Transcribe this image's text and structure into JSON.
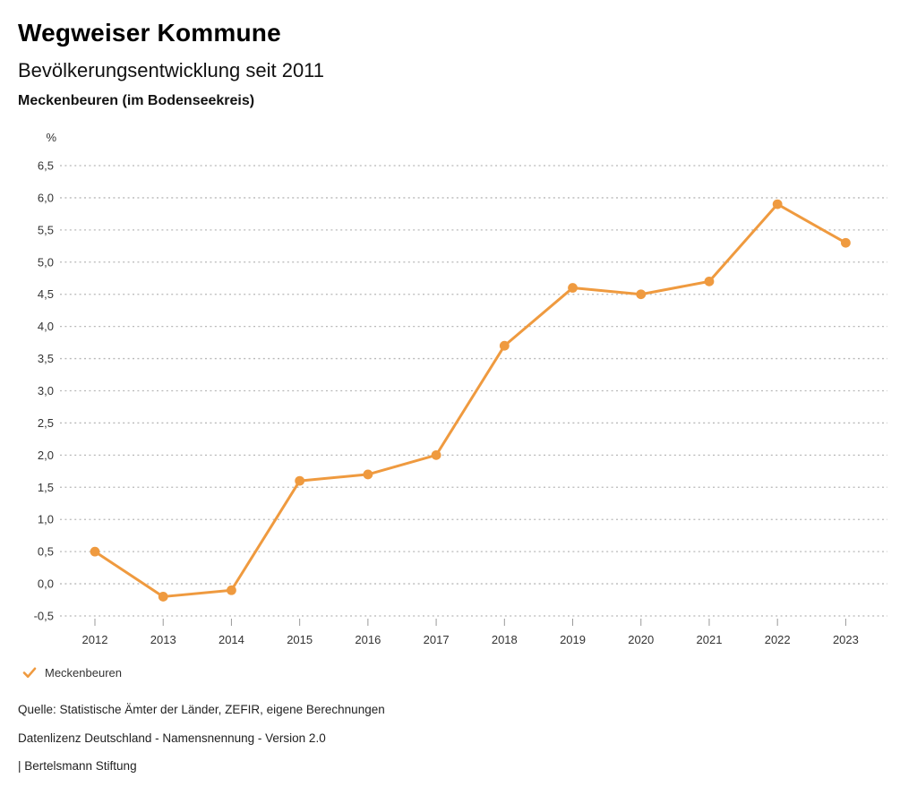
{
  "header": {
    "title": "Wegweiser Kommune",
    "subtitle": "Bevölkerungsentwicklung seit 2011",
    "region": "Meckenbeuren (im Bodenseekreis)"
  },
  "chart_data": {
    "type": "line",
    "title": "Bevölkerungsentwicklung seit 2011",
    "subtitle": "Meckenbeuren (im Bodenseekreis)",
    "unit_label": "%",
    "categories": [
      "2012",
      "2013",
      "2014",
      "2015",
      "2016",
      "2017",
      "2018",
      "2019",
      "2020",
      "2021",
      "2022",
      "2023"
    ],
    "series": [
      {
        "name": "Meckenbeuren",
        "color": "#EF9A3F",
        "values": [
          0.5,
          -0.2,
          -0.1,
          1.6,
          1.7,
          2.0,
          3.7,
          4.6,
          4.5,
          4.7,
          5.9,
          5.3
        ]
      }
    ],
    "xlabel": "",
    "ylabel": "%",
    "ylim": [
      -0.5,
      6.5
    ],
    "ytick_step": 0.5,
    "ytick_labels": [
      "6,5",
      "6,0",
      "5,5",
      "5,0",
      "4,5",
      "4,0",
      "3,5",
      "3,0",
      "2,5",
      "2,0",
      "1,5",
      "1,0",
      "0,5",
      "0,0",
      "-0,5"
    ],
    "grid": "horizontal-dotted",
    "legend_position": "bottom-left"
  },
  "legend": {
    "items": [
      {
        "label": "Meckenbeuren",
        "color": "#EF9A3F",
        "icon": "check-icon"
      }
    ]
  },
  "footer": {
    "source": "Quelle: Statistische Ämter der Länder, ZEFIR, eigene Berechnungen",
    "license": "Datenlizenz Deutschland - Namensnennung - Version 2.0",
    "attribution": "| Bertelsmann Stiftung"
  },
  "colors": {
    "accent": "#EF9A3F",
    "grid": "#b8b8b8",
    "tick": "#999999",
    "text": "#333333"
  }
}
